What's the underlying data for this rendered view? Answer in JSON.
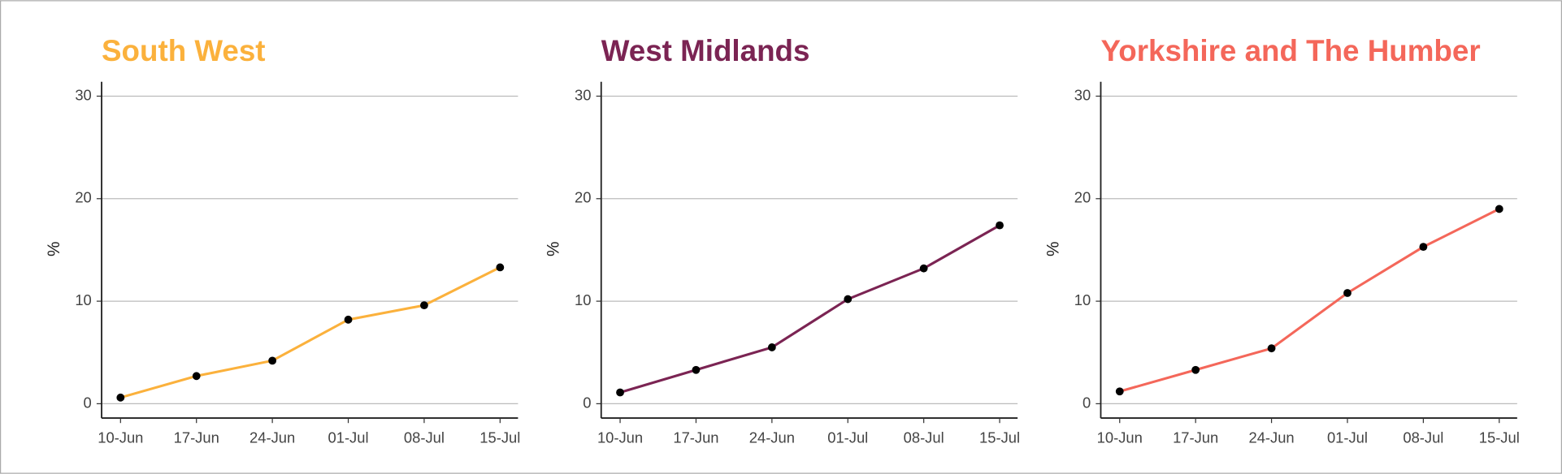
{
  "chart_data": [
    {
      "type": "line",
      "title": "South West",
      "y_label": "%",
      "categories": [
        "10-Jun",
        "17-Jun",
        "24-Jun",
        "01-Jul",
        "08-Jul",
        "15-Jul"
      ],
      "values": [
        0.6,
        2.7,
        4.2,
        8.2,
        9.6,
        13.3
      ],
      "color": "#fbb13c",
      "ylim": [
        -1.4,
        31.4
      ],
      "yticks": [
        0,
        10,
        20,
        30
      ],
      "grid": true
    },
    {
      "type": "line",
      "title": "West Midlands",
      "y_label": "%",
      "categories": [
        "10-Jun",
        "17-Jun",
        "24-Jun",
        "01-Jul",
        "08-Jul",
        "15-Jul"
      ],
      "values": [
        1.1,
        3.3,
        5.5,
        10.2,
        13.2,
        17.4
      ],
      "color": "#7b2453",
      "ylim": [
        -1.4,
        31.4
      ],
      "yticks": [
        0,
        10,
        20,
        30
      ],
      "grid": true
    },
    {
      "type": "line",
      "title": "Yorkshire and The Humber",
      "y_label": "%",
      "categories": [
        "10-Jun",
        "17-Jun",
        "24-Jun",
        "01-Jul",
        "08-Jul",
        "15-Jul"
      ],
      "values": [
        1.2,
        3.3,
        5.4,
        10.8,
        15.3,
        19.0
      ],
      "color": "#f4675a",
      "ylim": [
        -1.4,
        31.4
      ],
      "yticks": [
        0,
        10,
        20,
        30
      ],
      "grid": true
    }
  ]
}
